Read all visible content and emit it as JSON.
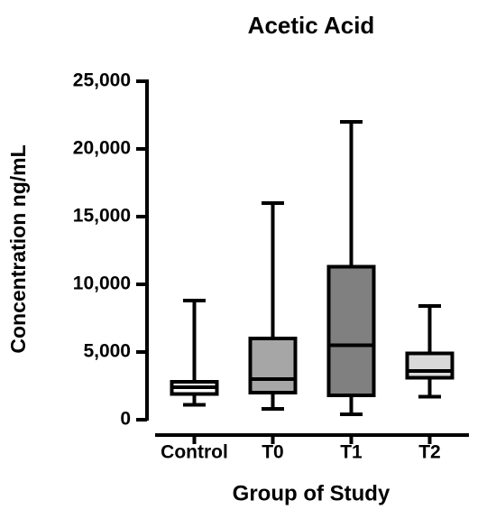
{
  "chart_data": {
    "type": "box",
    "title": "Acetic  Acid",
    "x_label": "Group of  Study",
    "y_label": "Concentration ng/mL",
    "categories": [
      "Control",
      "T0",
      "T1",
      "T2"
    ],
    "colors": [
      "#ffffff",
      "#a6a6a6",
      "#808080",
      "#d9d9d9"
    ],
    "boxes": [
      {
        "min": 1100,
        "q1": 1900,
        "median": 2400,
        "q3": 2800,
        "max": 8800
      },
      {
        "min": 800,
        "q1": 2000,
        "median": 3000,
        "q3": 6000,
        "max": 16000
      },
      {
        "min": 400,
        "q1": 1800,
        "median": 5500,
        "q3": 11300,
        "max": 22000
      },
      {
        "min": 1700,
        "q1": 3100,
        "median": 3600,
        "q3": 4900,
        "max": 8400
      }
    ],
    "ylim": [
      0,
      25000
    ],
    "yticks": [
      0,
      {
        "value": 5000,
        "label": "5,000"
      },
      {
        "value": 10000,
        "label": "10,000"
      },
      {
        "value": 15000,
        "label": "15,000"
      },
      {
        "value": 20000,
        "label": "20,000"
      },
      {
        "value": 25000,
        "label": "25,000"
      }
    ]
  }
}
